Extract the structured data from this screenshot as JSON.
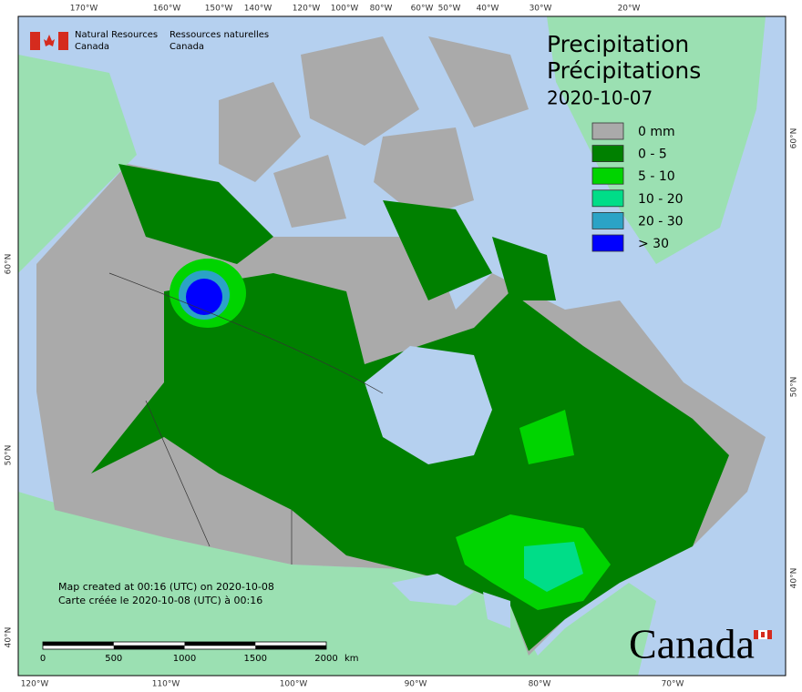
{
  "header": {
    "agency_en": [
      "Natural Resources",
      "Canada"
    ],
    "agency_fr": [
      "Ressources naturelles",
      "Canada"
    ]
  },
  "title": {
    "en": "Precipitation",
    "fr": "Précipitations",
    "date": "2020-10-07"
  },
  "legend": [
    {
      "label": "0 mm",
      "color": "#aaaaaa"
    },
    {
      "label": "0 - 5",
      "color": "#008000"
    },
    {
      "label": "5 - 10",
      "color": "#00d400"
    },
    {
      "label": "10 - 20",
      "color": "#00dd88"
    },
    {
      "label": "20 - 30",
      "color": "#2ba3c6"
    },
    {
      "label": "> 30",
      "color": "#0000ff"
    }
  ],
  "graticule": {
    "top": [
      "170°W",
      "160°W",
      "150°W",
      "140°W",
      "120°W",
      "100°W",
      "80°W",
      "60°W",
      "50°W",
      "40°W",
      "30°W",
      "20°W"
    ],
    "bottom": [
      "120°W",
      "110°W",
      "100°W",
      "90°W",
      "80°W",
      "70°W"
    ],
    "left": [
      "60°N",
      "50°N",
      "40°N"
    ],
    "right": [
      "60°N",
      "50°N",
      "40°N"
    ]
  },
  "credits": [
    "Map created at 00:16 (UTC) on 2020-10-08",
    "Carte créée le 2020-10-08 (UTC) à 00:16"
  ],
  "scale_bar": {
    "labels": [
      "0",
      "500",
      "1000",
      "1500",
      "2000"
    ],
    "unit": "km"
  },
  "wordmark": "Canada"
}
